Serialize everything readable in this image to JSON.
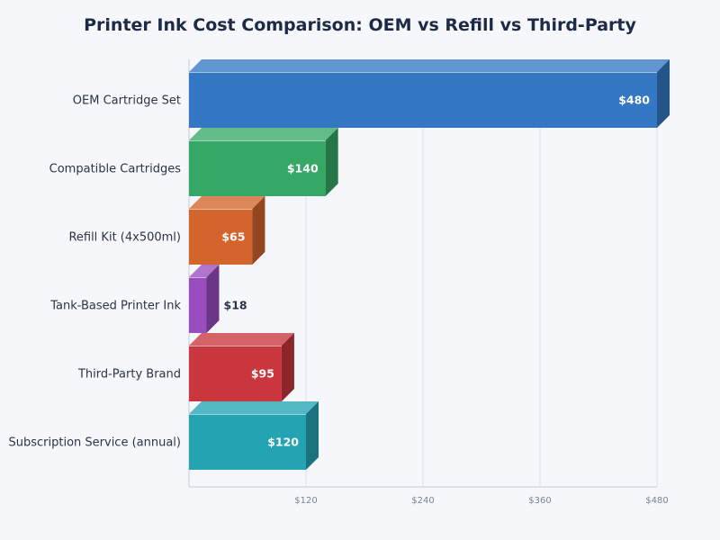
{
  "chart_data": {
    "type": "bar",
    "orientation": "horizontal",
    "title": "Printer Ink Cost Comparison: OEM vs Refill vs Third-Party",
    "categories": [
      "OEM Cartridge Set",
      "Compatible Cartridges",
      "Refill Kit (4x500ml)",
      "Tank-Based Printer Ink",
      "Third-Party Brand",
      "Subscription Service (annual)"
    ],
    "values": [
      480,
      140,
      65,
      18,
      95,
      120
    ],
    "value_labels": [
      "$480",
      "$140",
      "$65",
      "$18",
      "$95",
      "$120"
    ],
    "colors": [
      "#3478c4",
      "#36a866",
      "#d2642c",
      "#9a4dbf",
      "#c9363d",
      "#24a3b3"
    ],
    "xlim": [
      0,
      480
    ],
    "xticks": [
      120,
      240,
      360,
      480
    ],
    "xtick_labels": [
      "$120",
      "$240",
      "$360",
      "$480"
    ],
    "grid": true,
    "xlabel": "",
    "ylabel": ""
  }
}
